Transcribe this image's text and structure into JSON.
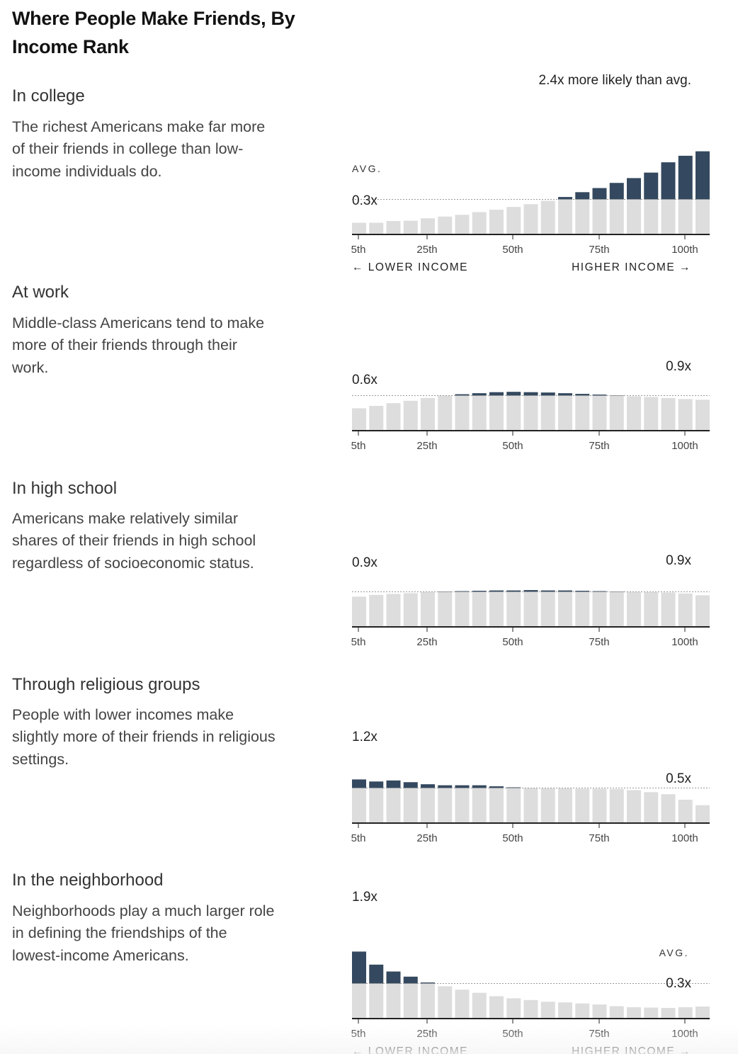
{
  "title": "Where People Make Friends, By Income Rank",
  "colors": {
    "above_avg": "#34495f",
    "below_avg": "#dddddd",
    "axis": "#222222",
    "avg_line": "#999999"
  },
  "sections": [
    {
      "heading": "In college",
      "description": "The richest Americans make far more of their friends in college than low-income individuals do."
    },
    {
      "heading": "At work",
      "description": "Middle-class Americans tend to make more of their friends through their work."
    },
    {
      "heading": "In high school",
      "description": "Americans make relatively similar shares of their friends in high school regardless of socioeconomic status."
    },
    {
      "heading": "Through religious groups",
      "description": "People with lower incomes make slightly more of their friends in religious settings."
    },
    {
      "heading": "In the neighborhood",
      "description": "Neighborhoods play a much larger role in defining the friendships of the lowest-income Americans."
    }
  ],
  "chart_data": [
    {
      "type": "bar",
      "name": "In college",
      "x_ticks": [
        "5th",
        "25th",
        "50th",
        "75th",
        "100th"
      ],
      "values": [
        0.32,
        0.32,
        0.37,
        0.38,
        0.45,
        0.5,
        0.55,
        0.63,
        0.7,
        0.78,
        0.86,
        0.96,
        1.07,
        1.21,
        1.33,
        1.48,
        1.62,
        1.78,
        2.08,
        2.27,
        2.4
      ],
      "avg": 1.0,
      "ylim": [
        0,
        2.4
      ],
      "annotations": {
        "avg_label": "AVG.",
        "low_label": "0.3x",
        "high_label": "2.4x more likely than avg."
      },
      "axis_labels": {
        "left": "← LOWER INCOME",
        "right": "HIGHER INCOME →"
      }
    },
    {
      "type": "bar",
      "name": "At work",
      "x_ticks": [
        "5th",
        "25th",
        "50th",
        "75th",
        "100th"
      ],
      "values": [
        0.63,
        0.7,
        0.78,
        0.85,
        0.93,
        1.0,
        1.04,
        1.07,
        1.1,
        1.11,
        1.1,
        1.09,
        1.07,
        1.05,
        1.03,
        1.01,
        0.98,
        0.96,
        0.93,
        0.9,
        0.88
      ],
      "avg": 1.0,
      "ylim": [
        0,
        2.4
      ],
      "annotations": {
        "low_label": "0.6x",
        "high_label": "0.9x"
      }
    },
    {
      "type": "bar",
      "name": "In high school",
      "x_ticks": [
        "5th",
        "25th",
        "50th",
        "75th",
        "100th"
      ],
      "values": [
        0.86,
        0.91,
        0.94,
        0.96,
        1.0,
        1.01,
        1.02,
        1.03,
        1.04,
        1.04,
        1.05,
        1.04,
        1.04,
        1.03,
        1.02,
        1.01,
        1.0,
        0.99,
        0.98,
        0.95,
        0.9
      ],
      "avg": 1.0,
      "ylim": [
        0,
        2.4
      ],
      "annotations": {
        "low_label": "0.9x",
        "high_label": "0.9x"
      }
    },
    {
      "type": "bar",
      "name": "Through religious groups",
      "x_ticks": [
        "5th",
        "25th",
        "50th",
        "75th",
        "100th"
      ],
      "values": [
        1.25,
        1.19,
        1.22,
        1.17,
        1.11,
        1.08,
        1.08,
        1.08,
        1.05,
        1.02,
        1.0,
        0.99,
        0.99,
        0.98,
        0.98,
        0.97,
        0.94,
        0.88,
        0.82,
        0.66,
        0.5
      ],
      "avg": 1.0,
      "ylim": [
        0,
        2.4
      ],
      "annotations": {
        "low_label": "1.2x",
        "high_label": "0.5x"
      }
    },
    {
      "type": "bar",
      "name": "In the neighborhood",
      "x_ticks": [
        "5th",
        "25th",
        "50th",
        "75th",
        "100th"
      ],
      "values": [
        1.93,
        1.55,
        1.35,
        1.2,
        1.03,
        0.92,
        0.82,
        0.73,
        0.63,
        0.57,
        0.52,
        0.47,
        0.45,
        0.42,
        0.39,
        0.34,
        0.31,
        0.3,
        0.29,
        0.31,
        0.33
      ],
      "avg": 1.0,
      "ylim": [
        0,
        2.4
      ],
      "annotations": {
        "avg_label": "AVG.",
        "low_label": "1.9x",
        "high_label": "0.3x"
      },
      "axis_labels": {
        "left": "← LOWER INCOME",
        "right": "HIGHER INCOME →"
      }
    }
  ]
}
